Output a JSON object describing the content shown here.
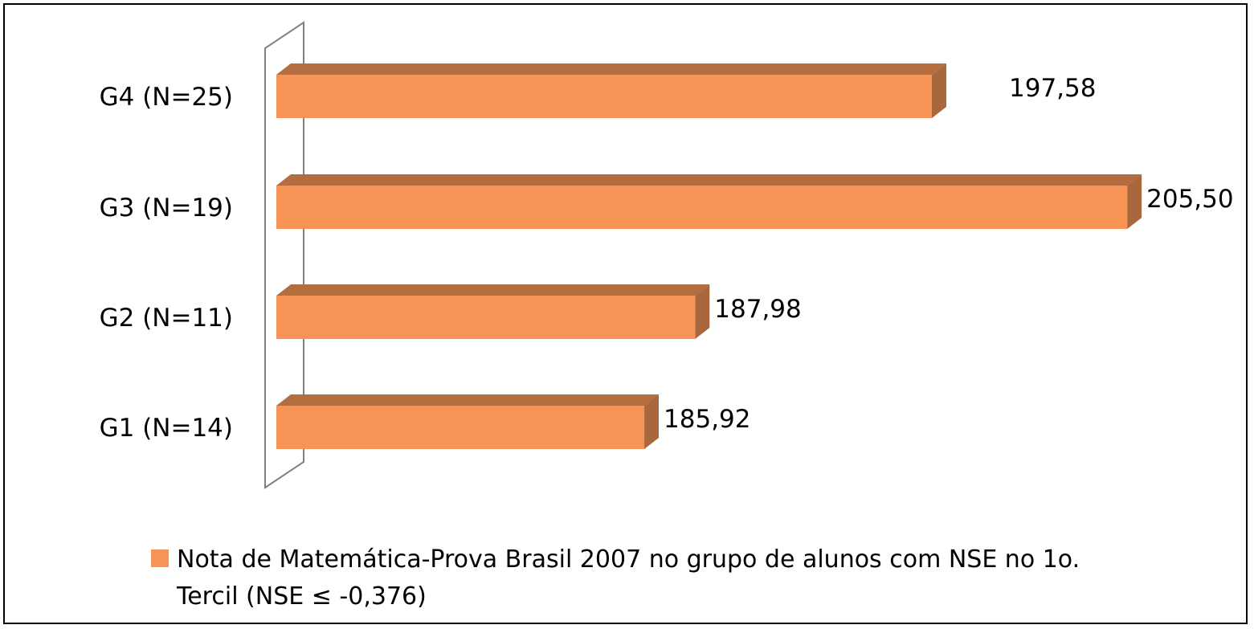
{
  "chart_data": {
    "type": "bar",
    "orientation": "horizontal",
    "style": "3d",
    "categories": [
      "G4 (N=25)",
      "G3 (N=19)",
      "G2 (N=11)",
      "G1 (N=14)"
    ],
    "series": [
      {
        "name": "Nota de Matemática-Prova Brasil 2007 no grupo de alunos com NSE no 1o. Tercil (NSE ≤ -0,376)",
        "legend_lines": [
          "Nota de Matemática-Prova Brasil 2007 no grupo de alunos com NSE no 1o.",
          "Tercil (NSE ≤ -0,376)"
        ],
        "values": [
          197.58,
          205.5,
          187.98,
          185.92
        ],
        "value_labels": [
          "197,58",
          "205,50",
          "187,98",
          "185,92"
        ],
        "color": "#F79455",
        "side_color": "#A8673D",
        "top_color": "#B36D3F"
      }
    ],
    "xlim": [
      171,
      211
    ],
    "grid": false,
    "legend_position": "bottom"
  }
}
